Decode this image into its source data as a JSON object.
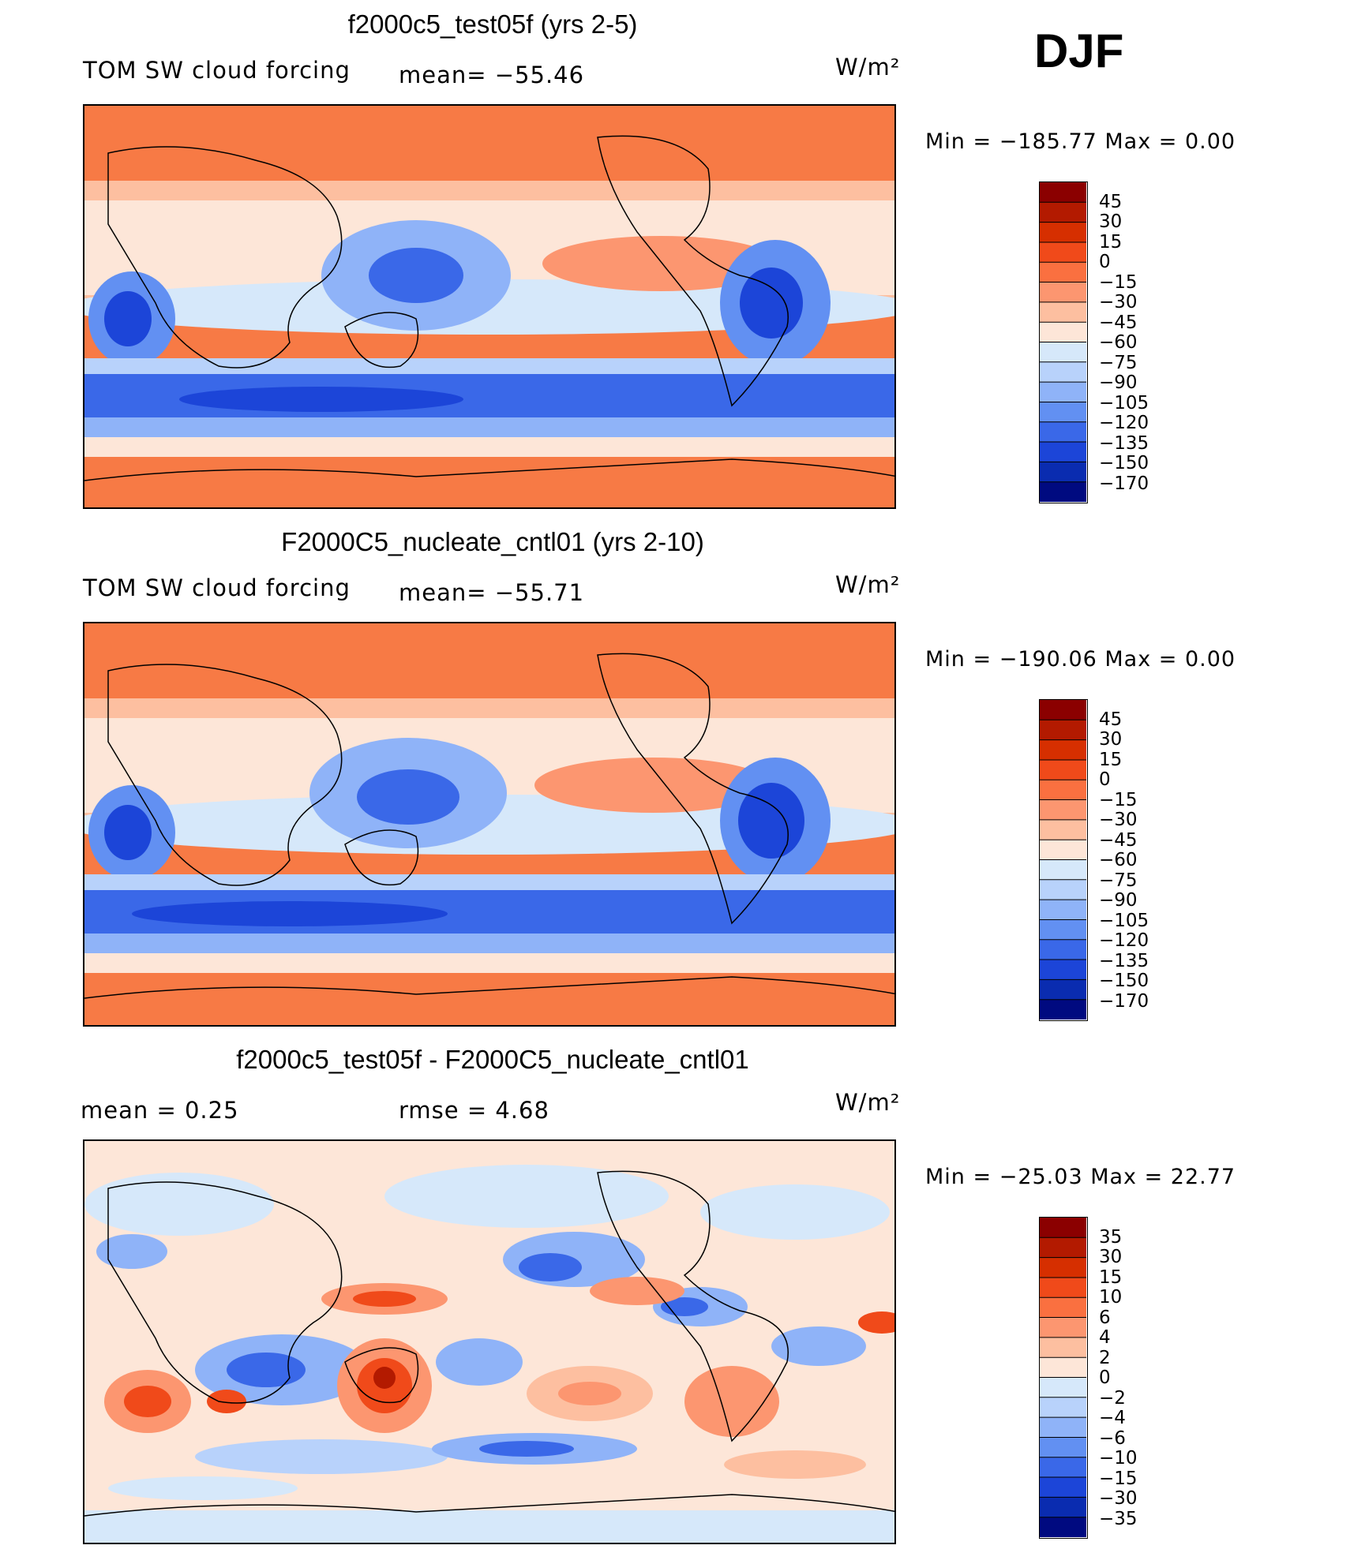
{
  "season": "DJF",
  "panels": [
    {
      "title": "f2000c5_test05f (yrs 2-5)",
      "left_label": "TOM  SW  cloud  forcing",
      "mid_label": "mean=  −55.46",
      "units": "W/m²",
      "minmax": "Min  =  −185.77  Max  =       0.00",
      "colorbar_labels": [
        "45",
        "30",
        "15",
        "0",
        "−15",
        "−30",
        "−45",
        "−60",
        "−75",
        "−90",
        "−105",
        "−120",
        "−135",
        "−150",
        "−170"
      ]
    },
    {
      "title": "F2000C5_nucleate_cntl01 (yrs 2-10)",
      "left_label": "TOM  SW  cloud  forcing",
      "mid_label": "mean=  −55.71",
      "units": "W/m²",
      "minmax": "Min  =  −190.06  Max  =       0.00",
      "colorbar_labels": [
        "45",
        "30",
        "15",
        "0",
        "−15",
        "−30",
        "−45",
        "−60",
        "−75",
        "−90",
        "−105",
        "−120",
        "−135",
        "−150",
        "−170"
      ]
    },
    {
      "title": "f2000c5_test05f - F2000C5_nucleate_cntl01",
      "left_label": "mean  =      0.25",
      "mid_label": "rmse  =      4.68",
      "units": "W/m²",
      "minmax": "Min  =  −25.03  Max  =    22.77",
      "colorbar_labels": [
        "35",
        "30",
        "15",
        "10",
        "6",
        "4",
        "2",
        "0",
        "−2",
        "−4",
        "−6",
        "−10",
        "−15",
        "−30",
        "−35"
      ]
    }
  ],
  "colors": {
    "colorbar": [
      "#8b0000",
      "#b31a00",
      "#d62f00",
      "#f04a1a",
      "#fa7040",
      "#fc9670",
      "#fdbfa0",
      "#fde6d8",
      "#d6e8fa",
      "#b8d2fb",
      "#8fb3f8",
      "#6290f2",
      "#3a68e8",
      "#1c45d8",
      "#0a2cb0",
      "#000a80"
    ],
    "land_fill": "#f77a45",
    "ocean_base": "#fde6d8",
    "diff_base": "#fde6d8"
  },
  "chart_data": [
    {
      "type": "heatmap",
      "title": "f2000c5_test05f (yrs 2-5)",
      "variable": "TOM SW cloud forcing",
      "units": "W/m2",
      "mean": -55.46,
      "min": -185.77,
      "max": 0.0,
      "contour_levels": [
        -170,
        -150,
        -135,
        -120,
        -105,
        -90,
        -75,
        -60,
        -45,
        -30,
        -15,
        0,
        15,
        30,
        45
      ],
      "season": "DJF"
    },
    {
      "type": "heatmap",
      "title": "F2000C5_nucleate_cntl01 (yrs 2-10)",
      "variable": "TOM SW cloud forcing",
      "units": "W/m2",
      "mean": -55.71,
      "min": -190.06,
      "max": 0.0,
      "contour_levels": [
        -170,
        -150,
        -135,
        -120,
        -105,
        -90,
        -75,
        -60,
        -45,
        -30,
        -15,
        0,
        15,
        30,
        45
      ],
      "season": "DJF"
    },
    {
      "type": "heatmap",
      "title": "f2000c5_test05f - F2000C5_nucleate_cntl01",
      "variable": "difference",
      "units": "W/m2",
      "mean": 0.25,
      "rmse": 4.68,
      "min": -25.03,
      "max": 22.77,
      "contour_levels": [
        -35,
        -30,
        -15,
        -10,
        -6,
        -4,
        -2,
        0,
        2,
        4,
        6,
        10,
        15,
        30,
        35
      ],
      "season": "DJF"
    }
  ]
}
